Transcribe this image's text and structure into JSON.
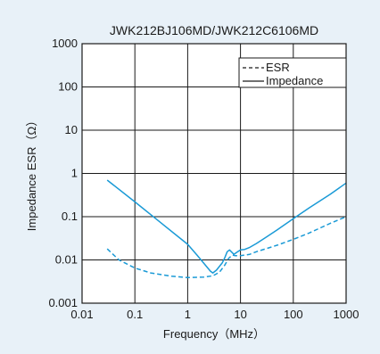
{
  "chart_data": {
    "type": "line",
    "title": "JWK212BJ106MD/JWK212C6106MD",
    "xlabel": "Frequency（MHz）",
    "ylabel": "Impedance ESR（Ω）",
    "x_scale": "log",
    "y_scale": "log",
    "xlim": [
      0.01,
      1000
    ],
    "ylim": [
      0.001,
      1000
    ],
    "x_ticks": [
      "0.01",
      "0.1",
      "1",
      "10",
      "100",
      "1000"
    ],
    "y_ticks": [
      "0.001",
      "0.01",
      "0.1",
      "1",
      "10",
      "100",
      "1000"
    ],
    "grid": true,
    "legend_position": "top-right",
    "colors": {
      "line": "#1a9ad6",
      "background": "#e8f1f8",
      "plot_area": "#ffffff"
    },
    "legend": [
      {
        "label": "ESR",
        "style": "dashed"
      },
      {
        "label": "Impedance",
        "style": "solid"
      }
    ],
    "series": [
      {
        "name": "Impedance",
        "style": "solid",
        "x": [
          0.03,
          0.1,
          0.3,
          1,
          1.5,
          2.0,
          2.7,
          3.0,
          3.5,
          4.5,
          5.0,
          5.6,
          6.2,
          7.5,
          8.5,
          10,
          12,
          15,
          20,
          30,
          50,
          100,
          200,
          500,
          1000
        ],
        "y": [
          0.7,
          0.22,
          0.075,
          0.023,
          0.013,
          0.0085,
          0.0055,
          0.005,
          0.0058,
          0.0085,
          0.011,
          0.0155,
          0.017,
          0.0135,
          0.015,
          0.017,
          0.0175,
          0.0195,
          0.024,
          0.033,
          0.05,
          0.09,
          0.16,
          0.33,
          0.6
        ]
      },
      {
        "name": "ESR",
        "style": "dashed",
        "x": [
          0.03,
          0.05,
          0.1,
          0.2,
          0.5,
          1,
          2,
          3,
          4,
          5,
          6,
          7,
          8,
          10,
          15,
          20,
          50,
          100,
          200,
          500,
          1000
        ],
        "y": [
          0.018,
          0.01,
          0.0065,
          0.005,
          0.0042,
          0.0039,
          0.004,
          0.0043,
          0.0052,
          0.0075,
          0.011,
          0.013,
          0.0125,
          0.0125,
          0.0135,
          0.0155,
          0.022,
          0.03,
          0.042,
          0.07,
          0.1
        ]
      }
    ]
  }
}
